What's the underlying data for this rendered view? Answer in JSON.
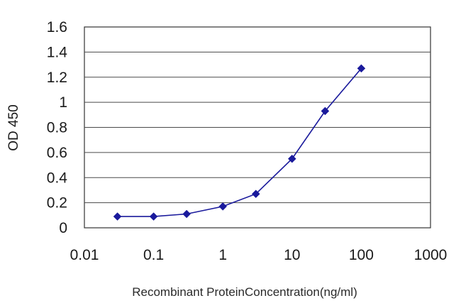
{
  "chart_data": {
    "type": "line",
    "title": "",
    "xlabel": "Recombinant ProteinConcentration(ng/ml)",
    "ylabel": "OD 450",
    "xscale": "log",
    "xlim": [
      0.01,
      1000
    ],
    "ylim": [
      0,
      1.6
    ],
    "x_ticks": [
      "0.01",
      "0.1",
      "1",
      "10",
      "100",
      "1000"
    ],
    "y_ticks": [
      "0",
      "0.2",
      "0.4",
      "0.6",
      "0.8",
      "1",
      "1.2",
      "1.4",
      "1.6"
    ],
    "grid": "horizontal",
    "legend": "none",
    "series": [
      {
        "x": [
          0.03,
          0.1,
          0.3,
          1,
          3,
          10,
          30,
          100
        ],
        "values": [
          0.09,
          0.09,
          0.11,
          0.17,
          0.27,
          0.55,
          0.93,
          1.27
        ],
        "color": "#1a1a9c"
      }
    ]
  }
}
